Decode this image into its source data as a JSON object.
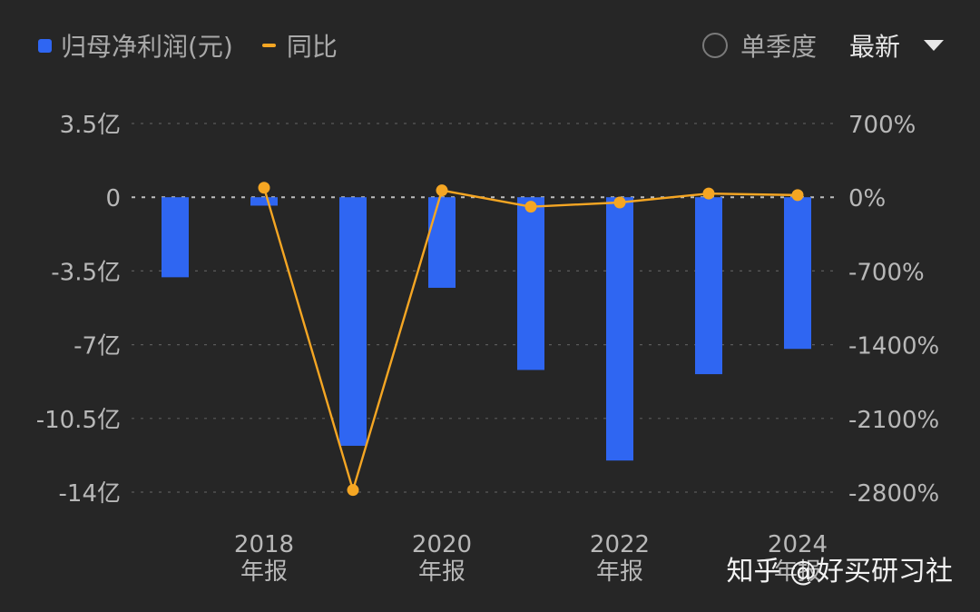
{
  "legend": {
    "bar_label": "归母净利润(元)",
    "line_label": "同比"
  },
  "controls": {
    "period_label": "单季度",
    "period_selected": false,
    "select_value": "最新"
  },
  "watermark": "知乎 @好买研习社",
  "colors": {
    "background": "#262626",
    "bar": "#2f66f2",
    "line": "#f5a623",
    "grid": "#5a5a5a",
    "tick": "#b8b8b8"
  },
  "chart_data": {
    "type": "bar",
    "series": [
      {
        "name": "归母净利润(元)",
        "type": "bar",
        "axis": "left",
        "unit": "亿",
        "values": [
          -3.8,
          -0.4,
          -11.8,
          -4.3,
          -8.2,
          -12.5,
          -8.4,
          -7.2
        ]
      },
      {
        "name": "同比",
        "type": "line",
        "axis": "right",
        "unit": "%",
        "values": [
          null,
          90,
          -2780,
          65,
          -90,
          -50,
          35,
          20
        ]
      }
    ],
    "x_tick_labels": [
      "2018\n年报",
      "2020\n年报",
      "2022\n年报",
      "2024\n年报"
    ],
    "x_tick_category_index": [
      1,
      3,
      5,
      7
    ],
    "y_left": {
      "ticks": [
        3.5,
        0,
        -3.5,
        -7,
        -10.5,
        -14
      ],
      "tick_labels": [
        "3.5亿",
        "0",
        "-3.5亿",
        "-7亿",
        "-10.5亿",
        "-14亿"
      ],
      "range": [
        -14,
        3.5
      ]
    },
    "y_right": {
      "ticks": [
        700,
        0,
        -700,
        -1400,
        -2100,
        -2800
      ],
      "tick_labels": [
        "700%",
        "0%",
        "-700%",
        "-1400%",
        "-2100%",
        "-2800%"
      ],
      "range": [
        -2800,
        700
      ]
    },
    "grid": "dashed-horizontal",
    "legend_position": "top-left"
  }
}
